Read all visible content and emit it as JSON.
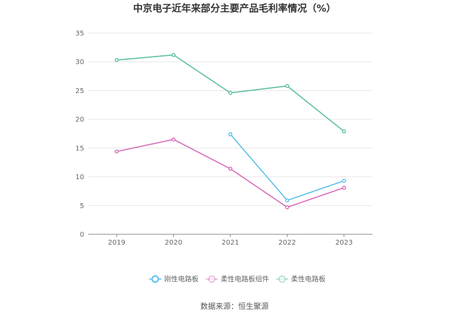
{
  "chart_data": {
    "type": "line",
    "title": "中京电子近年来部分主要产品毛利率情况（%）",
    "xlabel": "",
    "ylabel": "",
    "ylim": [
      0,
      35
    ],
    "yticks": [
      0,
      5,
      10,
      15,
      20,
      25,
      30,
      35
    ],
    "categories": [
      "2019",
      "2020",
      "2021",
      "2022",
      "2023"
    ],
    "grid": true,
    "legend_position": "bottom",
    "series": [
      {
        "name": "刚性电路板",
        "color": "#5bc0eb",
        "values": [
          null,
          null,
          17.4,
          5.9,
          9.3
        ]
      },
      {
        "name": "柔性电路板组件",
        "color": "#d96ab8",
        "values": [
          14.4,
          16.5,
          11.4,
          4.7,
          8.1
        ]
      },
      {
        "name": "柔性电路板",
        "color": "#5ebfa3",
        "values": [
          30.3,
          31.2,
          24.6,
          25.8,
          17.9
        ]
      }
    ]
  },
  "source": "数据来源：恒生聚源"
}
